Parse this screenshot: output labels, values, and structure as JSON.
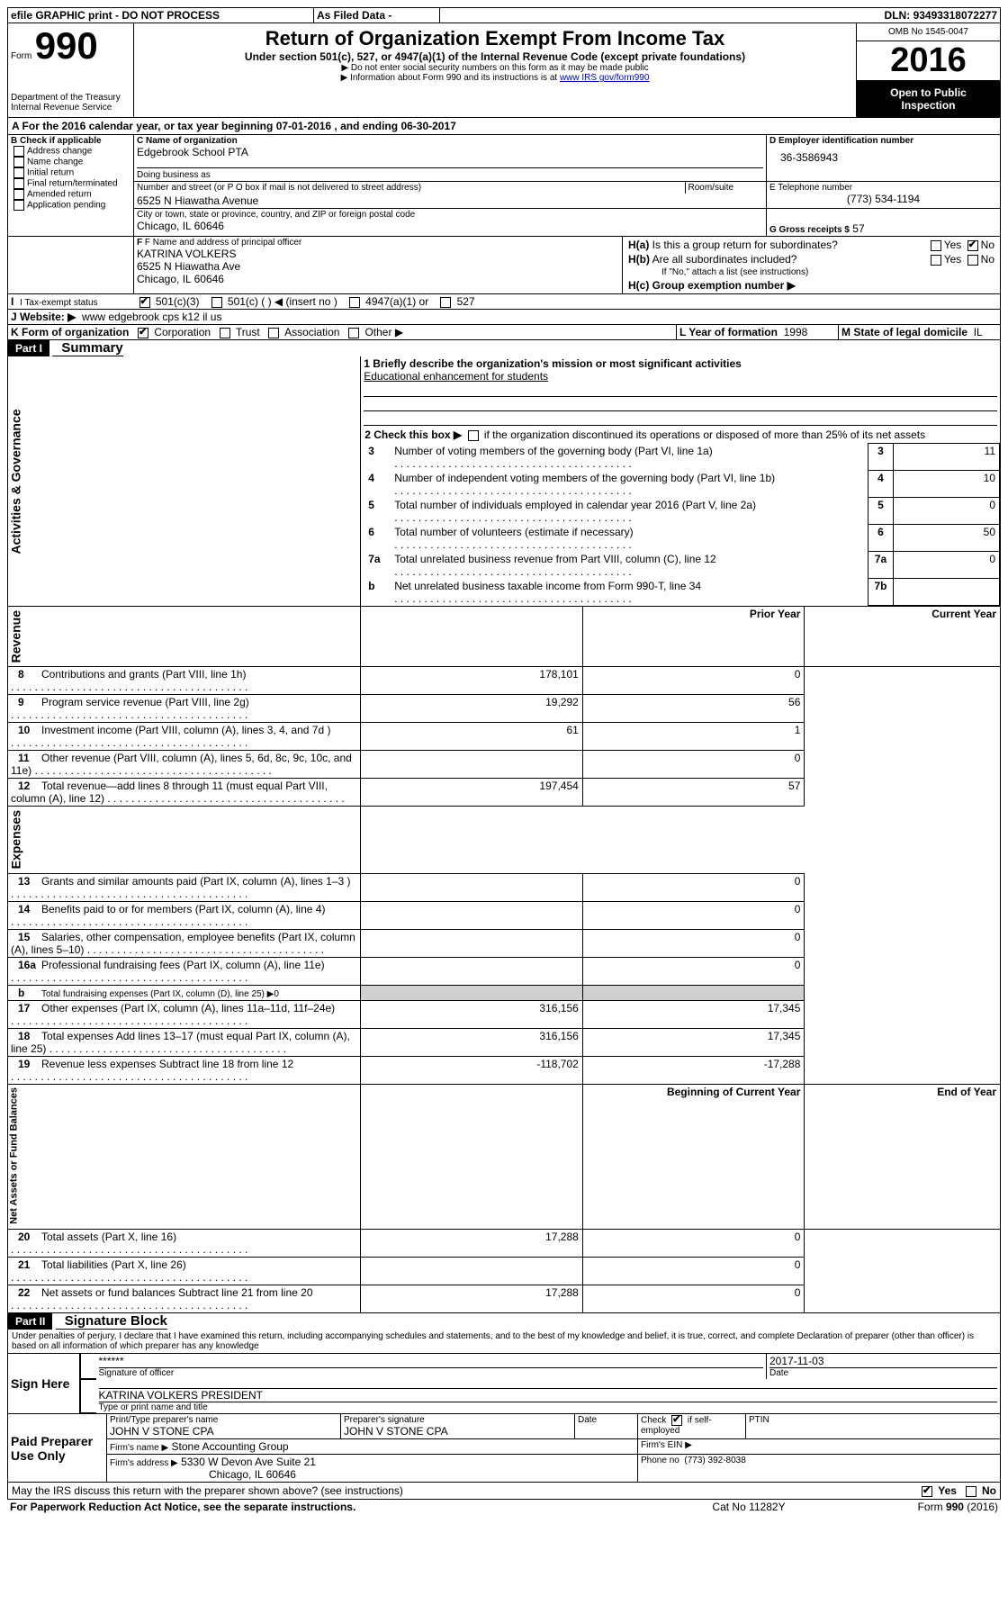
{
  "header": {
    "efile_label": "efile GRAPHIC print - DO NOT PROCESS",
    "as_filed": "As Filed Data -",
    "dln_label": "DLN:",
    "dln": "93493318072277",
    "form_label": "Form",
    "form_no": "990",
    "dept1": "Department of the Treasury",
    "dept2": "Internal Revenue Service",
    "title": "Return of Organization Exempt From Income Tax",
    "subtitle": "Under section 501(c), 527, or 4947(a)(1) of the Internal Revenue Code (except private foundations)",
    "hint1": "▶ Do not enter social security numbers on this form as it may be made public",
    "hint2_a": "▶ Information about Form 990 and its instructions is at ",
    "hint2_link": "www IRS gov/form990",
    "omb": "OMB No 1545-0047",
    "year": "2016",
    "open": "Open to Public Inspection"
  },
  "secA": {
    "label": "A  For the 2016 calendar year, or tax year beginning",
    "begin": "07-01-2016",
    "mid": ", and ending",
    "end": "06-30-2017"
  },
  "secB": {
    "title": "B Check if applicable",
    "items": [
      "Address change",
      "Name change",
      "Initial return",
      "Final return/terminated",
      "Amended return",
      "Application pending"
    ]
  },
  "secC": {
    "name_label": "C Name of organization",
    "name": "Edgebrook School PTA",
    "dba_label": "Doing business as",
    "dba": "",
    "street_label": "Number and street (or P O  box if mail is not delivered to street address)",
    "room_label": "Room/suite",
    "street": "6525 N Hiawatha Avenue",
    "city_label": "City or town, state or province, country, and ZIP or foreign postal code",
    "city": "Chicago, IL  60646"
  },
  "secD": {
    "label": "D Employer identification number",
    "val": "36-3586943"
  },
  "secE": {
    "label": "E Telephone number",
    "val": "(773) 534-1194"
  },
  "secG": {
    "label": "G Gross receipts $",
    "val": "57"
  },
  "secF": {
    "label": "F  Name and address of principal officer",
    "line1": "KATRINA VOLKERS",
    "line2": "6525 N Hiawatha Ave",
    "line3": "Chicago, IL  60646"
  },
  "secH": {
    "a_label": "H(a)  Is this a group return for subordinates?",
    "b_label": "H(b)  Are all subordinates included?",
    "b_note": "If \"No,\" attach a list  (see instructions)",
    "c_label": "H(c)  Group exemption number ▶",
    "yes": "Yes",
    "no": "No"
  },
  "secI": {
    "label": "I   Tax-exempt status",
    "c3": "501(c)(3)",
    "c_other": "501(c) (   ) ◀ (insert no )",
    "a4947": "4947(a)(1) or",
    "s527": "527"
  },
  "secJ": {
    "label": "J  Website: ▶",
    "val": "www edgebrook cps k12 il us"
  },
  "secK": {
    "label": "K Form of organization",
    "corp": "Corporation",
    "trust": "Trust",
    "assoc": "Association",
    "other": "Other ▶"
  },
  "secL": {
    "label": "L Year of formation",
    "val": "1998"
  },
  "secM": {
    "label": "M State of legal domicile",
    "val": "IL"
  },
  "partI": {
    "hdr": "Part I",
    "title": "Summary",
    "side_gov": "Activities & Governance",
    "side_rev": "Revenue",
    "side_exp": "Expenses",
    "side_net": "Net Assets or Fund Balances",
    "l1a": "1 Briefly describe the organization's mission or most significant activities",
    "l1b": "Educational enhancement for students",
    "l2": "2  Check this box ▶",
    "l2b": "if the organization discontinued its operations or disposed of more than 25% of its net assets",
    "lines_gov": [
      {
        "n": "3",
        "txt": "Number of voting members of the governing body (Part VI, line 1a)",
        "box": "3",
        "val": "11"
      },
      {
        "n": "4",
        "txt": "Number of independent voting members of the governing body (Part VI, line 1b)",
        "box": "4",
        "val": "10"
      },
      {
        "n": "5",
        "txt": "Total number of individuals employed in calendar year 2016 (Part V, line 2a)",
        "box": "5",
        "val": "0"
      },
      {
        "n": "6",
        "txt": "Total number of volunteers (estimate if necessary)",
        "box": "6",
        "val": "50"
      },
      {
        "n": "7a",
        "txt": "Total unrelated business revenue from Part VIII, column (C), line 12",
        "box": "7a",
        "val": "0"
      },
      {
        "n": "b",
        "txt": "Net unrelated business taxable income from Form 990-T, line 34",
        "box": "7b",
        "val": ""
      }
    ],
    "hdr_prior": "Prior Year",
    "hdr_curr": "Current Year",
    "lines_rev": [
      {
        "n": "8",
        "txt": "Contributions and grants (Part VIII, line 1h)",
        "p": "178,101",
        "c": "0"
      },
      {
        "n": "9",
        "txt": "Program service revenue (Part VIII, line 2g)",
        "p": "19,292",
        "c": "56"
      },
      {
        "n": "10",
        "txt": "Investment income (Part VIII, column (A), lines 3, 4, and 7d )",
        "p": "61",
        "c": "1"
      },
      {
        "n": "11",
        "txt": "Other revenue (Part VIII, column (A), lines 5, 6d, 8c, 9c, 10c, and 11e)",
        "p": "",
        "c": "0"
      },
      {
        "n": "12",
        "txt": "Total revenue—add lines 8 through 11 (must equal Part VIII, column (A), line 12)",
        "p": "197,454",
        "c": "57"
      }
    ],
    "lines_exp": [
      {
        "n": "13",
        "txt": "Grants and similar amounts paid (Part IX, column (A), lines 1–3 )",
        "p": "",
        "c": "0"
      },
      {
        "n": "14",
        "txt": "Benefits paid to or for members (Part IX, column (A), line 4)",
        "p": "",
        "c": "0"
      },
      {
        "n": "15",
        "txt": "Salaries, other compensation, employee benefits (Part IX, column (A), lines 5–10)",
        "p": "",
        "c": "0"
      },
      {
        "n": "16a",
        "txt": "Professional fundraising fees (Part IX, column (A), line 11e)",
        "p": "",
        "c": "0"
      },
      {
        "n": "b",
        "txt": "Total fundraising expenses (Part IX, column (D), line 25) ▶0",
        "p": "",
        "c": "",
        "noright": true
      },
      {
        "n": "17",
        "txt": "Other expenses (Part IX, column (A), lines 11a–11d, 11f–24e)",
        "p": "316,156",
        "c": "17,345"
      },
      {
        "n": "18",
        "txt": "Total expenses  Add lines 13–17 (must equal Part IX, column (A), line 25)",
        "p": "316,156",
        "c": "17,345"
      },
      {
        "n": "19",
        "txt": "Revenue less expenses  Subtract line 18 from line 12",
        "p": "-118,702",
        "c": "-17,288"
      }
    ],
    "hdr_begin": "Beginning of Current Year",
    "hdr_end": "End of Year",
    "lines_net": [
      {
        "n": "20",
        "txt": "Total assets (Part X, line 16)",
        "p": "17,288",
        "c": "0"
      },
      {
        "n": "21",
        "txt": "Total liabilities (Part X, line 26)",
        "p": "",
        "c": "0"
      },
      {
        "n": "22",
        "txt": "Net assets or fund balances  Subtract line 21 from line 20",
        "p": "17,288",
        "c": "0"
      }
    ]
  },
  "partII": {
    "hdr": "Part II",
    "title": "Signature Block",
    "decl": "Under penalties of perjury, I declare that I have examined this return, including accompanying schedules and statements, and to the best of my knowledge and belief, it is true, correct, and complete  Declaration of preparer (other than officer) is based on all information of which preparer has any knowledge",
    "sign_here": "Sign Here",
    "stars": "******",
    "sig_officer": "Signature of officer",
    "date_label": "Date",
    "sig_date": "2017-11-03",
    "officer_name": "KATRINA VOLKERS  PRESIDENT",
    "name_title": "Type or print name and title",
    "paid": "Paid Preparer Use Only",
    "prep_name_label": "Print/Type preparer's name",
    "prep_name": "JOHN V STONE CPA",
    "prep_sig_label": "Preparer's signature",
    "prep_sig": "JOHN V STONE CPA",
    "prep_date_label": "Date",
    "check_if": "Check",
    "self_emp": "if self-employed",
    "ptin": "PTIN",
    "firm_name_label": "Firm's name    ▶",
    "firm_name": "Stone Accounting Group",
    "firm_ein": "Firm's EIN ▶",
    "firm_addr_label": "Firm's address ▶",
    "firm_addr1": "5330 W Devon Ave Suite 21",
    "firm_addr2": "Chicago, IL  60646",
    "phone_label": "Phone no",
    "phone": "(773) 392-8038",
    "discuss": "May the IRS discuss this return with the preparer shown above? (see instructions)",
    "yes": "Yes",
    "no": "No",
    "paperwork": "For Paperwork Reduction Act Notice, see the separate instructions.",
    "cat": "Cat  No  11282Y",
    "form_foot": "Form 990 (2016)"
  }
}
